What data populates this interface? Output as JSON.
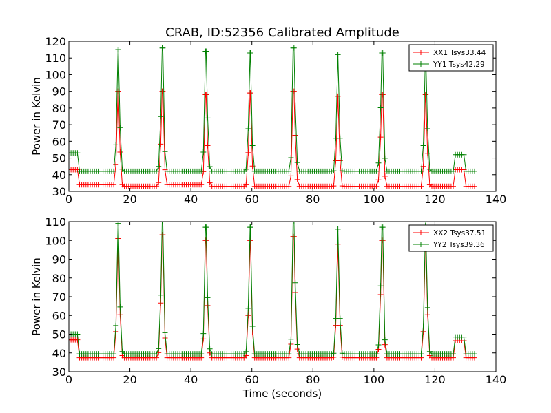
{
  "figure": {
    "title": "CRAB, ID:52356 Calibrated Amplitude"
  },
  "chart_data": [
    {
      "type": "line",
      "title": "CRAB, ID:52356 Calibrated Amplitude",
      "xlabel": "",
      "ylabel": "Power in Kelvin",
      "xlim": [
        0,
        140
      ],
      "ylim": [
        30,
        120
      ],
      "xticks": [
        0,
        20,
        40,
        60,
        80,
        100,
        120,
        140
      ],
      "yticks": [
        30,
        40,
        50,
        60,
        70,
        80,
        90,
        100,
        110,
        120
      ],
      "grid": false,
      "legend_position": "top-right",
      "sample_step_seconds": 0.7,
      "time_range": [
        0,
        133
      ],
      "series": [
        {
          "name": "XX1 Tsys33.44",
          "color": "#ff0000",
          "marker": "plus",
          "levels": [
            [
              0,
              3,
              43
            ],
            [
              3,
              16,
              34
            ],
            [
              16.2,
              29.2,
              33
            ],
            [
              30.6,
              43.6,
              34
            ],
            [
              45.0,
              58.0,
              33
            ],
            [
              59.4,
              72.4,
              33
            ],
            [
              73.8,
              86.8,
              33
            ],
            [
              88.2,
              101.2,
              33
            ],
            [
              102.6,
              115.6,
              33
            ],
            [
              117.0,
              126.5,
              33
            ],
            [
              126.5,
              130,
              43
            ],
            [
              130,
              133,
              33
            ]
          ],
          "peaks": [
            [
              16.2,
              90
            ],
            [
              30.6,
              90
            ],
            [
              45.0,
              88
            ],
            [
              59.4,
              89
            ],
            [
              73.8,
              90
            ],
            [
              88.2,
              87
            ],
            [
              102.6,
              88
            ],
            [
              117.0,
              88
            ]
          ]
        },
        {
          "name": "YY1 Tsys42.29",
          "color": "#008000",
          "marker": "plus",
          "levels": [
            [
              0,
              3,
              53
            ],
            [
              3,
              126.5,
              42
            ],
            [
              126.5,
              130,
              52
            ],
            [
              130,
              133,
              42
            ]
          ],
          "peaks": [
            [
              16.2,
              115
            ],
            [
              30.6,
              116
            ],
            [
              45.0,
              114
            ],
            [
              59.4,
              113
            ],
            [
              73.8,
              116
            ],
            [
              88.2,
              112
            ],
            [
              102.6,
              113
            ],
            [
              117.0,
              113
            ]
          ]
        }
      ]
    },
    {
      "type": "line",
      "title": "",
      "xlabel": "Time (seconds)",
      "ylabel": "Power in Kelvin",
      "xlim": [
        0,
        140
      ],
      "ylim": [
        30,
        110
      ],
      "xticks": [
        0,
        20,
        40,
        60,
        80,
        100,
        120,
        140
      ],
      "yticks": [
        30,
        40,
        50,
        60,
        70,
        80,
        90,
        100,
        110
      ],
      "grid": false,
      "legend_position": "top-right",
      "sample_step_seconds": 0.7,
      "time_range": [
        0,
        133
      ],
      "series": [
        {
          "name": "XX2 Tsys37.51",
          "color": "#ff0000",
          "marker": "plus",
          "levels": [
            [
              0,
              3,
              47
            ],
            [
              3,
              126.5,
              37.5
            ],
            [
              126.5,
              130,
              46.5
            ],
            [
              130,
              133,
              37.5
            ]
          ],
          "peaks": [
            [
              16.2,
              101
            ],
            [
              30.6,
              103
            ],
            [
              45.0,
              100
            ],
            [
              59.4,
              100
            ],
            [
              73.8,
              102
            ],
            [
              88.2,
              98
            ],
            [
              102.6,
              100
            ],
            [
              117.0,
              101
            ]
          ]
        },
        {
          "name": "YY2 Tsys39.36",
          "color": "#008000",
          "marker": "plus",
          "levels": [
            [
              0,
              3,
              50
            ],
            [
              3,
              126.5,
              39.5
            ],
            [
              126.5,
              130,
              48.5
            ],
            [
              130,
              133,
              39.5
            ]
          ],
          "peaks": [
            [
              16.2,
              109
            ],
            [
              30.6,
              110
            ],
            [
              45.0,
              107
            ],
            [
              59.4,
              107
            ],
            [
              73.8,
              110
            ],
            [
              88.2,
              106
            ],
            [
              102.6,
              107
            ],
            [
              117.0,
              108
            ]
          ]
        }
      ]
    }
  ]
}
